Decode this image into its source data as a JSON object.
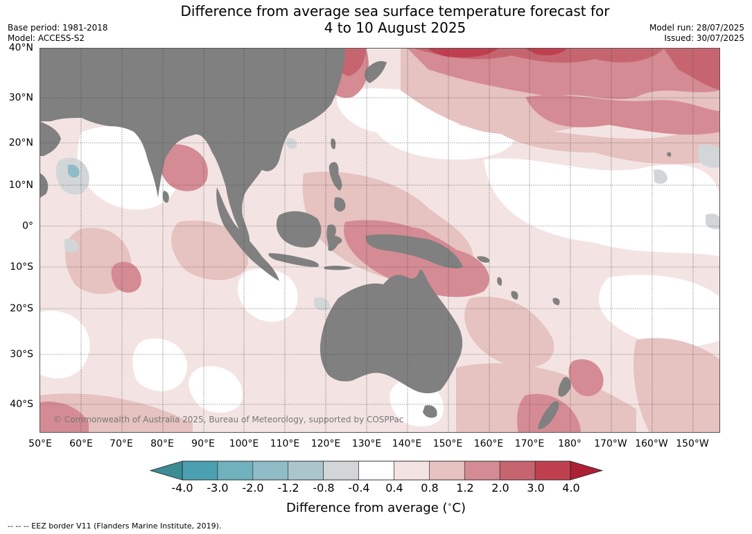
{
  "title_line1": "Difference from average sea surface temperature forecast for",
  "title_line2": "4 to 10 August 2025",
  "base_period": "Base period: 1981-2018",
  "model": "Model: ACCESS-S2",
  "model_run": "Model run: 28/07/2025",
  "issued": "Issued: 30/07/2025",
  "lat_labels": [
    "40°N",
    "30°N",
    "20°N",
    "10°N",
    "0°",
    "10°S",
    "20°S",
    "30°S",
    "40°S"
  ],
  "lon_labels": [
    "50°E",
    "60°E",
    "70°E",
    "80°E",
    "90°E",
    "100°E",
    "110°E",
    "120°E",
    "130°E",
    "140°E",
    "150°E",
    "160°E",
    "170°E",
    "180°",
    "170°W",
    "160°W",
    "150°W"
  ],
  "copyright": "© Commonwealth of Australia 2025, Bureau of Meteorology, supported by COSPPac",
  "colorbar": {
    "ticks": [
      "-4.0",
      "-3.0",
      "-2.0",
      "-1.2",
      "-0.8",
      "-0.4",
      "0.4",
      "0.8",
      "1.2",
      "2.0",
      "3.0",
      "4.0"
    ],
    "colors": [
      "#4aa0b0",
      "#6fb1bd",
      "#8fbcc6",
      "#aac5cc",
      "#d3d6d9",
      "#ffffff",
      "#f3e4e3",
      "#e6c2c0",
      "#d58b93",
      "#c66570",
      "#bf3f4f"
    ],
    "under_color": "#3c8c94",
    "over_color": "#ad1f34",
    "title": "Difference from average ($^\\circ$C)"
  },
  "colors": {
    "land": "#808080",
    "ocean_neutral": "#ffffff",
    "warm_light": "#f3e4e3",
    "warm_mid": "#e6c2c0",
    "warm_strong": "#d58b93",
    "warm_deeper": "#c66570",
    "cool_light": "#d3d6d9",
    "cool_mid": "#8fbcc6"
  },
  "footnote": "--  --  -- EEZ border V11 (Flanders Marine Institute, 2019)."
}
